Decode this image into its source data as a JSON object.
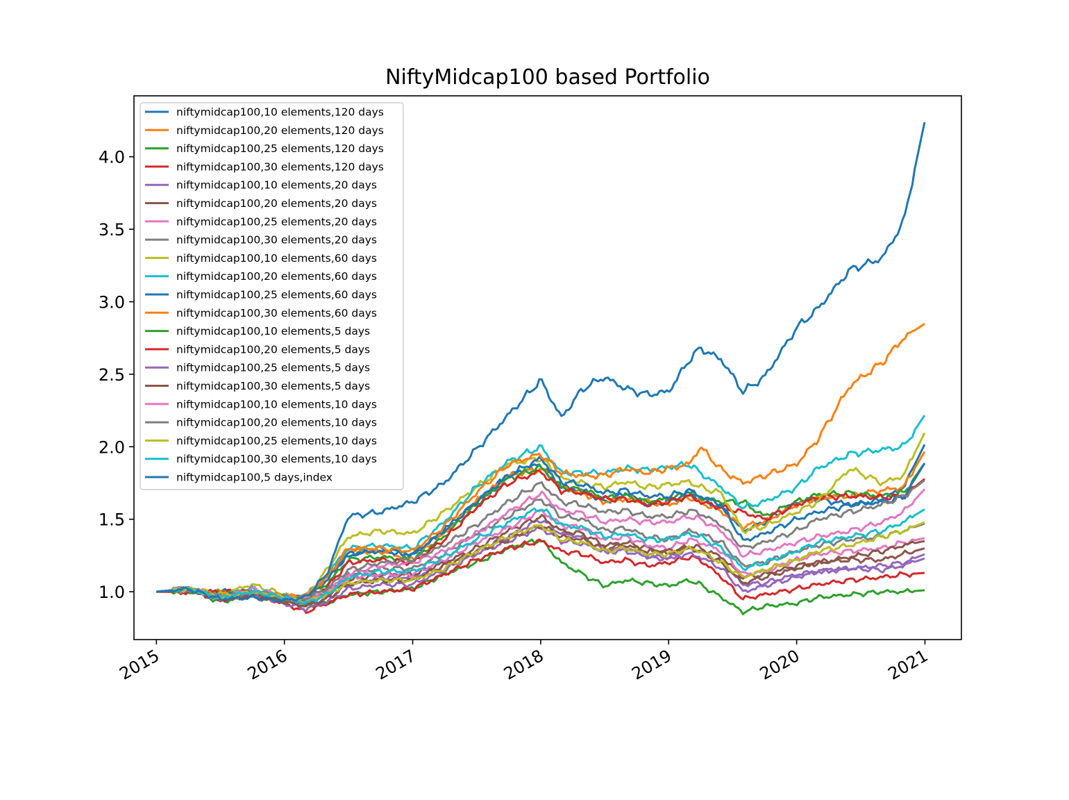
{
  "chart_data": {
    "type": "line",
    "title": "NiftyMidcap100 based Portfolio",
    "xlabel": "",
    "ylabel": "",
    "xlim": [
      "2014-10-29",
      "2021-04-15"
    ],
    "ylim": [
      0.67,
      4.42
    ],
    "x_ticks": [
      "2015",
      "2016",
      "2017",
      "2018",
      "2019",
      "2020",
      "2021"
    ],
    "y_ticks": [
      "1.0",
      "1.5",
      "2.0",
      "2.5",
      "3.0",
      "3.5",
      "4.0"
    ],
    "grid": false,
    "legend_position": "upper-left",
    "anchor_dates": [
      "2015-01-01",
      "2015-04-01",
      "2015-07-01",
      "2015-10-01",
      "2016-01-01",
      "2016-03-01",
      "2016-05-01",
      "2016-07-01",
      "2016-10-01",
      "2017-01-01",
      "2017-04-01",
      "2017-07-01",
      "2017-10-01",
      "2018-01-01",
      "2018-03-01",
      "2018-05-01",
      "2018-07-01",
      "2018-09-01",
      "2018-11-01",
      "2019-01-01",
      "2019-03-01",
      "2019-04-01",
      "2019-06-01",
      "2019-08-01",
      "2019-10-01",
      "2020-01-01",
      "2020-03-01",
      "2020-06-01",
      "2020-09-01",
      "2020-11-01",
      "2021-01-01"
    ],
    "series": [
      {
        "name": "niftymidcap100,10 elements,120 days",
        "color": "#1f77b4",
        "values": [
          1.0,
          1.0,
          1.0,
          1.0,
          0.96,
          0.98,
          1.1,
          1.25,
          1.3,
          1.25,
          1.42,
          1.62,
          1.8,
          1.88,
          1.72,
          1.7,
          1.62,
          1.68,
          1.6,
          1.62,
          1.68,
          1.64,
          1.58,
          1.42,
          1.48,
          1.62,
          1.64,
          1.6,
          1.63,
          1.72,
          2.02
        ]
      },
      {
        "name": "niftymidcap100,20 elements,120 days",
        "color": "#ff7f0e",
        "values": [
          1.0,
          1.0,
          1.0,
          1.0,
          0.97,
          0.97,
          1.1,
          1.28,
          1.28,
          1.22,
          1.4,
          1.62,
          1.8,
          1.85,
          1.72,
          1.68,
          1.62,
          1.64,
          1.62,
          1.6,
          1.65,
          1.62,
          1.55,
          1.45,
          1.48,
          1.6,
          1.65,
          1.66,
          1.7,
          1.72,
          1.97
        ]
      },
      {
        "name": "niftymidcap100,25 elements,120 days",
        "color": "#2ca02c",
        "values": [
          1.0,
          1.0,
          1.0,
          1.0,
          0.97,
          0.96,
          1.05,
          1.22,
          1.24,
          1.22,
          1.38,
          1.6,
          1.78,
          1.86,
          1.72,
          1.7,
          1.65,
          1.66,
          1.62,
          1.64,
          1.68,
          1.65,
          1.62,
          1.62,
          1.52,
          1.62,
          1.67,
          1.68,
          1.66,
          1.68,
          1.89
        ]
      },
      {
        "name": "niftymidcap100,30 elements,120 days",
        "color": "#d62728",
        "values": [
          1.0,
          1.0,
          1.0,
          1.0,
          0.96,
          0.95,
          1.03,
          1.2,
          1.22,
          1.2,
          1.36,
          1.58,
          1.75,
          1.83,
          1.7,
          1.68,
          1.64,
          1.64,
          1.6,
          1.62,
          1.66,
          1.62,
          1.58,
          1.55,
          1.5,
          1.6,
          1.65,
          1.66,
          1.65,
          1.66,
          1.78
        ]
      },
      {
        "name": "niftymidcap100,10 elements,20 days",
        "color": "#9467bd",
        "values": [
          1.0,
          1.02,
          0.95,
          0.98,
          0.94,
          0.92,
          0.95,
          1.05,
          1.1,
          1.1,
          1.18,
          1.28,
          1.38,
          1.5,
          1.4,
          1.38,
          1.28,
          1.3,
          1.25,
          1.22,
          1.3,
          1.28,
          1.2,
          1.05,
          1.06,
          1.12,
          1.14,
          1.16,
          1.15,
          1.18,
          1.23
        ]
      },
      {
        "name": "niftymidcap100,20 elements,20 days",
        "color": "#8c564b",
        "values": [
          1.0,
          1.02,
          0.95,
          0.98,
          0.95,
          0.93,
          0.97,
          1.08,
          1.12,
          1.12,
          1.2,
          1.3,
          1.42,
          1.52,
          1.42,
          1.4,
          1.32,
          1.34,
          1.3,
          1.26,
          1.32,
          1.3,
          1.24,
          1.1,
          1.12,
          1.18,
          1.2,
          1.22,
          1.22,
          1.26,
          1.3
        ]
      },
      {
        "name": "niftymidcap100,25 elements,20 days",
        "color": "#e377c2",
        "values": [
          1.0,
          1.02,
          0.96,
          0.99,
          0.96,
          0.94,
          0.98,
          1.1,
          1.12,
          1.12,
          1.22,
          1.34,
          1.44,
          1.56,
          1.46,
          1.44,
          1.36,
          1.38,
          1.32,
          1.3,
          1.36,
          1.34,
          1.28,
          1.12,
          1.14,
          1.22,
          1.26,
          1.28,
          1.3,
          1.34,
          1.37
        ]
      },
      {
        "name": "niftymidcap100,30 elements,20 days",
        "color": "#7f7f7f",
        "values": [
          1.0,
          1.02,
          0.96,
          0.99,
          0.97,
          0.95,
          1.0,
          1.12,
          1.16,
          1.16,
          1.26,
          1.4,
          1.52,
          1.64,
          1.52,
          1.5,
          1.42,
          1.44,
          1.38,
          1.36,
          1.42,
          1.4,
          1.34,
          1.18,
          1.2,
          1.28,
          1.32,
          1.36,
          1.38,
          1.42,
          1.47
        ]
      },
      {
        "name": "niftymidcap100,10 elements,60 days",
        "color": "#bcbd22",
        "values": [
          1.0,
          1.02,
          0.98,
          1.05,
          0.98,
          0.96,
          1.15,
          1.38,
          1.42,
          1.4,
          1.55,
          1.72,
          1.88,
          1.92,
          1.78,
          1.75,
          1.72,
          1.76,
          1.72,
          1.74,
          1.76,
          1.72,
          1.68,
          1.42,
          1.45,
          1.55,
          1.62,
          1.85,
          1.75,
          1.8,
          2.1
        ]
      },
      {
        "name": "niftymidcap100,20 elements,60 days",
        "color": "#17becf",
        "values": [
          1.0,
          1.02,
          0.97,
          1.02,
          0.97,
          0.96,
          1.12,
          1.3,
          1.32,
          1.3,
          1.48,
          1.72,
          1.9,
          2.0,
          1.82,
          1.82,
          1.82,
          1.85,
          1.84,
          1.86,
          1.88,
          1.82,
          1.72,
          1.58,
          1.62,
          1.72,
          1.85,
          1.95,
          1.98,
          2.0,
          2.22
        ]
      },
      {
        "name": "niftymidcap100,25 elements,60 days",
        "color": "#1f77b4",
        "values": [
          1.0,
          1.02,
          0.97,
          1.0,
          0.96,
          0.95,
          1.08,
          1.26,
          1.28,
          1.26,
          1.42,
          1.62,
          1.8,
          1.92,
          1.76,
          1.74,
          1.68,
          1.7,
          1.66,
          1.66,
          1.7,
          1.66,
          1.6,
          1.35,
          1.4,
          1.5,
          1.55,
          1.6,
          1.62,
          1.65,
          1.89
        ]
      },
      {
        "name": "niftymidcap100,30 elements,60 days",
        "color": "#ff7f0e",
        "values": [
          1.0,
          1.02,
          0.97,
          1.0,
          0.97,
          0.96,
          1.1,
          1.3,
          1.3,
          1.28,
          1.45,
          1.68,
          1.88,
          1.95,
          1.82,
          1.8,
          1.8,
          1.85,
          1.82,
          1.85,
          1.88,
          2.0,
          1.84,
          1.75,
          1.8,
          1.88,
          2.05,
          2.42,
          2.58,
          2.75,
          2.85
        ]
      },
      {
        "name": "niftymidcap100,10 elements,5 days",
        "color": "#2ca02c",
        "values": [
          1.0,
          1.02,
          0.93,
          0.97,
          0.93,
          0.9,
          0.92,
          0.98,
          1.0,
          1.02,
          1.12,
          1.2,
          1.3,
          1.36,
          1.2,
          1.12,
          1.04,
          1.08,
          1.06,
          1.04,
          1.08,
          1.05,
          0.96,
          0.86,
          0.9,
          0.92,
          0.96,
          0.98,
          1.0,
          1.0,
          1.01
        ]
      },
      {
        "name": "niftymidcap100,20 elements,5 days",
        "color": "#d62728",
        "values": [
          1.0,
          1.02,
          0.94,
          0.97,
          0.92,
          0.86,
          0.92,
          0.98,
          1.0,
          1.02,
          1.12,
          1.22,
          1.3,
          1.35,
          1.28,
          1.26,
          1.2,
          1.22,
          1.18,
          1.2,
          1.24,
          1.22,
          1.1,
          0.95,
          0.98,
          1.02,
          1.05,
          1.08,
          1.1,
          1.12,
          1.13
        ]
      },
      {
        "name": "niftymidcap100,25 elements,5 days",
        "color": "#9467bd",
        "values": [
          1.0,
          1.02,
          0.95,
          0.98,
          0.92,
          0.88,
          0.93,
          1.02,
          1.05,
          1.05,
          1.15,
          1.26,
          1.35,
          1.44,
          1.35,
          1.33,
          1.28,
          1.28,
          1.24,
          1.24,
          1.26,
          1.24,
          1.16,
          1.0,
          1.04,
          1.1,
          1.14,
          1.16,
          1.18,
          1.2,
          1.26
        ]
      },
      {
        "name": "niftymidcap100,30 elements,5 days",
        "color": "#8c564b",
        "values": [
          1.0,
          1.02,
          0.95,
          0.98,
          0.93,
          0.9,
          0.95,
          1.05,
          1.08,
          1.08,
          1.18,
          1.28,
          1.36,
          1.46,
          1.38,
          1.36,
          1.3,
          1.32,
          1.28,
          1.28,
          1.3,
          1.28,
          1.2,
          1.06,
          1.1,
          1.16,
          1.2,
          1.24,
          1.28,
          1.32,
          1.35
        ]
      },
      {
        "name": "niftymidcap100,10 elements,10 days",
        "color": "#e377c2",
        "values": [
          1.0,
          1.02,
          0.96,
          1.02,
          0.97,
          0.95,
          1.0,
          1.12,
          1.18,
          1.2,
          1.28,
          1.4,
          1.55,
          1.68,
          1.56,
          1.54,
          1.48,
          1.5,
          1.48,
          1.48,
          1.52,
          1.5,
          1.42,
          1.25,
          1.28,
          1.34,
          1.38,
          1.42,
          1.48,
          1.55,
          1.71
        ]
      },
      {
        "name": "niftymidcap100,20 elements,10 days",
        "color": "#7f7f7f",
        "values": [
          1.0,
          1.02,
          0.96,
          1.0,
          0.97,
          0.95,
          1.02,
          1.15,
          1.2,
          1.22,
          1.32,
          1.46,
          1.62,
          1.75,
          1.62,
          1.6,
          1.55,
          1.56,
          1.52,
          1.52,
          1.56,
          1.54,
          1.46,
          1.3,
          1.34,
          1.42,
          1.5,
          1.55,
          1.6,
          1.66,
          1.77
        ]
      },
      {
        "name": "niftymidcap100,25 elements,10 days",
        "color": "#bcbd22",
        "values": [
          1.0,
          1.02,
          0.96,
          1.0,
          0.96,
          0.93,
          0.98,
          1.06,
          1.08,
          1.08,
          1.16,
          1.28,
          1.38,
          1.46,
          1.36,
          1.34,
          1.28,
          1.3,
          1.26,
          1.26,
          1.3,
          1.28,
          1.2,
          1.1,
          1.15,
          1.22,
          1.28,
          1.32,
          1.38,
          1.42,
          1.48
        ]
      },
      {
        "name": "niftymidcap100,30 elements,10 days",
        "color": "#17becf",
        "values": [
          1.0,
          1.02,
          0.96,
          1.0,
          0.96,
          0.92,
          0.98,
          1.1,
          1.14,
          1.14,
          1.24,
          1.36,
          1.48,
          1.58,
          1.46,
          1.44,
          1.38,
          1.4,
          1.36,
          1.36,
          1.4,
          1.38,
          1.3,
          1.16,
          1.2,
          1.28,
          1.34,
          1.38,
          1.42,
          1.48,
          1.57
        ]
      },
      {
        "name": "niftymidcap100,5 days,index",
        "color": "#1f77b4",
        "values": [
          1.0,
          1.02,
          0.95,
          0.96,
          0.94,
          0.96,
          1.12,
          1.52,
          1.55,
          1.62,
          1.75,
          1.98,
          2.22,
          2.46,
          2.2,
          2.4,
          2.48,
          2.4,
          2.36,
          2.38,
          2.6,
          2.68,
          2.6,
          2.38,
          2.48,
          2.82,
          2.95,
          3.22,
          3.3,
          3.55,
          4.25
        ]
      }
    ]
  }
}
